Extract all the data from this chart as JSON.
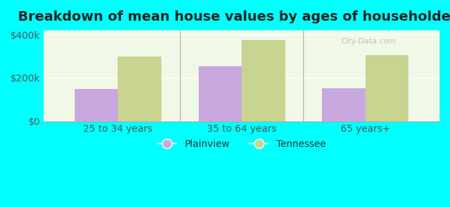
{
  "title": "Breakdown of mean house values by ages of householders",
  "categories": [
    "25 to 34 years",
    "35 to 64 years",
    "65 years+"
  ],
  "plainview_values": [
    150000,
    255000,
    152000
  ],
  "tennessee_values": [
    300000,
    375000,
    305000
  ],
  "plainview_color": "#c9a8e0",
  "tennessee_color": "#c8d490",
  "background_color": "#00ffff",
  "plot_bg_color": "#f0f8e8",
  "ylim": [
    0,
    420000
  ],
  "ytick_labels": [
    "$0",
    "$200k",
    "$400k"
  ],
  "ytick_values": [
    0,
    200000,
    400000
  ],
  "bar_width": 0.35,
  "legend_labels": [
    "Plainview",
    "Tennessee"
  ],
  "title_fontsize": 14,
  "tick_fontsize": 10,
  "legend_fontsize": 10,
  "watermark": "City-Data.com"
}
